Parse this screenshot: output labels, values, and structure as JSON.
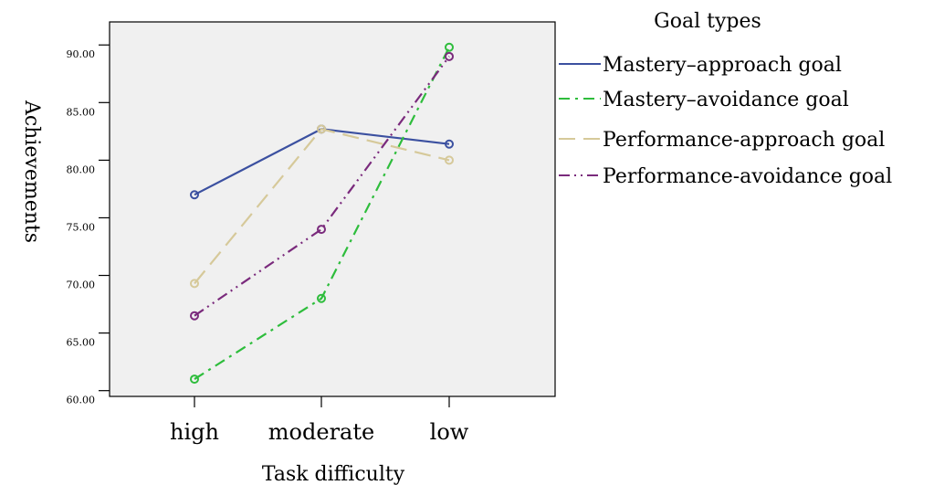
{
  "chart_data": {
    "type": "line",
    "categories": [
      "high",
      "moderate",
      "low"
    ],
    "xlabel": "Task difficulty",
    "ylabel": "Achievements",
    "ylim": [
      59.5,
      92.0
    ],
    "yticks": [
      "60.00",
      "65.00",
      "70.00",
      "75.00",
      "80.00",
      "85.00",
      "90.00"
    ],
    "grid": false,
    "background": "#f0f0f0",
    "legend": {
      "title": "Goal types",
      "placement": "right"
    },
    "series": [
      {
        "name": "Mastery–approach goal",
        "values": [
          77.0,
          82.7,
          81.4
        ],
        "color": "#3b50a0",
        "dash": "solid"
      },
      {
        "name": "Mastery–avoidance goal",
        "values": [
          61.0,
          68.0,
          89.8
        ],
        "color": "#2ebd3c",
        "dash": "dashdot"
      },
      {
        "name": "Performance-approach goal",
        "values": [
          69.3,
          82.7,
          80.0
        ],
        "color": "#d6c99a",
        "dash": "dashed"
      },
      {
        "name": "Performance-avoidance goal",
        "values": [
          66.5,
          74.0,
          89.0
        ],
        "color": "#7a2a7c",
        "dash": "dashdotdot"
      }
    ]
  }
}
